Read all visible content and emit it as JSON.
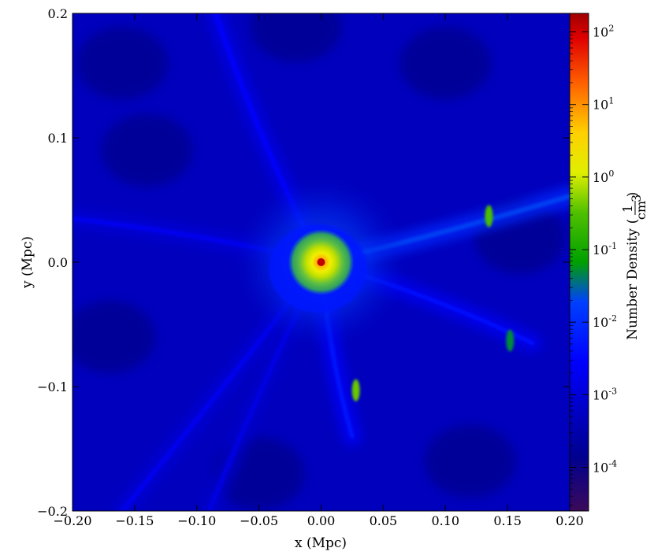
{
  "chart_data": {
    "type": "heatmap",
    "title": "",
    "xlabel": "x  (Mpc)",
    "ylabel": "y  (Mpc)",
    "xlim": [
      -0.2,
      0.2
    ],
    "ylim": [
      -0.2,
      0.2
    ],
    "x_ticks": [
      -0.2,
      -0.15,
      -0.1,
      -0.05,
      0.0,
      0.05,
      0.1,
      0.15,
      0.2
    ],
    "x_tick_labels": [
      "−0.20",
      "−0.15",
      "−0.10",
      "−0.05",
      "0.00",
      "0.05",
      "0.10",
      "0.15",
      "0.20"
    ],
    "y_ticks": [
      -0.2,
      -0.1,
      0.0,
      0.1,
      0.2
    ],
    "y_tick_labels": [
      "−0.2",
      "−0.1",
      "0.0",
      "0.1",
      "0.2"
    ],
    "grid": false,
    "colorbar": {
      "label_text": "Number Density",
      "label_unit_numerator": "1",
      "label_unit_denominator": "cm",
      "label_unit_exponent": "3",
      "scale": "log",
      "range": [
        2.5e-05,
        180
      ],
      "colormap": "jet",
      "tick_values": [
        0.0001,
        0.001,
        0.01,
        0.1,
        1,
        10,
        100
      ],
      "tick_bases": [
        "10",
        "10",
        "10",
        "10",
        "10",
        "10",
        "10"
      ],
      "tick_exponents": [
        "-4",
        "-3",
        "-2",
        "-1",
        "0",
        "1",
        "2"
      ]
    },
    "features": {
      "background_value": 0.0003,
      "central_halo": {
        "x": 0.0,
        "y": 0.0,
        "peak_value": 120
      },
      "filaments": [
        {
          "from": [
            0.0,
            0.0
          ],
          "to": [
            -0.085,
            0.2
          ],
          "value": 0.003
        },
        {
          "from": [
            0.0,
            0.0
          ],
          "to": [
            -0.2,
            0.035
          ],
          "value": 0.002
        },
        {
          "from": [
            0.0,
            0.0
          ],
          "to": [
            0.2,
            0.053
          ],
          "value": 0.02
        },
        {
          "from": [
            0.0,
            0.0
          ],
          "to": [
            0.17,
            -0.065
          ],
          "value": 0.004
        },
        {
          "from": [
            0.0,
            0.0
          ],
          "to": [
            0.025,
            -0.14
          ],
          "value": 0.005
        },
        {
          "from": [
            0.0,
            0.0
          ],
          "to": [
            -0.16,
            -0.2
          ],
          "value": 0.002
        },
        {
          "from": [
            0.0,
            0.0
          ],
          "to": [
            -0.09,
            -0.2
          ],
          "value": 0.0015
        }
      ],
      "clumps": [
        {
          "x": 0.028,
          "y": -0.103,
          "value": 0.4
        },
        {
          "x": 0.152,
          "y": -0.063,
          "value": 0.05
        },
        {
          "x": 0.135,
          "y": 0.037,
          "value": 0.3
        }
      ]
    },
    "colors": {
      "low": "#3b0a5a",
      "mid": "#0014d8",
      "green": "#20a020",
      "yellow": "#e8ea00",
      "high": "#b80000"
    }
  }
}
